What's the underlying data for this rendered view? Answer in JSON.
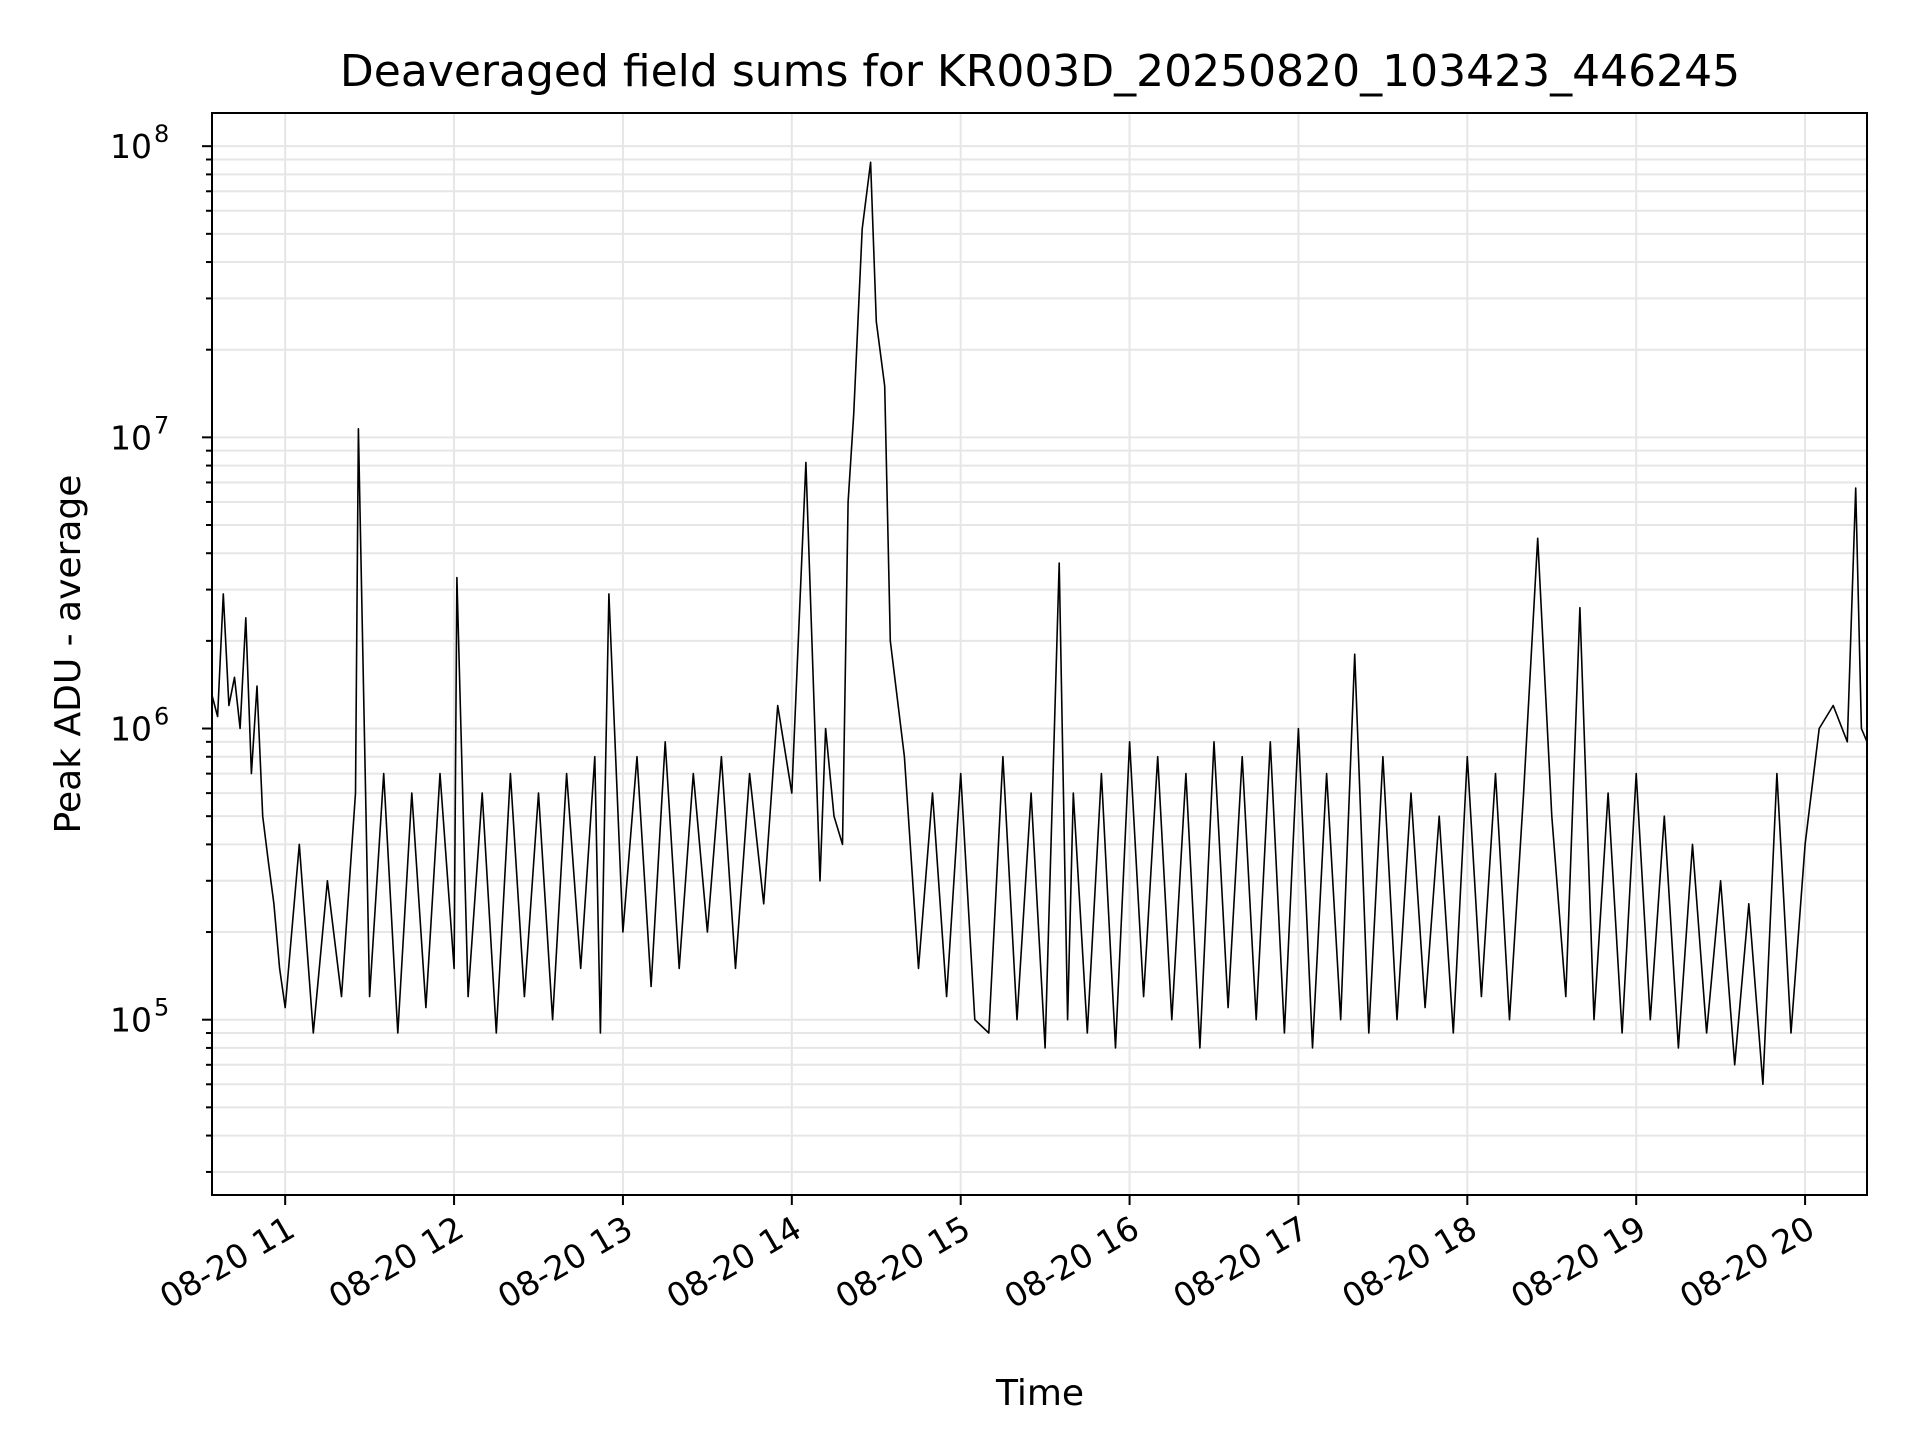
{
  "chart_data": {
    "type": "line",
    "title": "Deaveraged field sums for KR003D_20250820_103423_446245",
    "xlabel": "Time",
    "ylabel": "Peak ADU - average",
    "y_scale": "log",
    "xlim": [
      "08-20 10:34",
      "08-20 20:22"
    ],
    "ylim": [
      25000,
      130000000
    ],
    "grid": true,
    "x_tick_labels": [
      "08-20 11",
      "08-20 12",
      "08-20 13",
      "08-20 14",
      "08-20 15",
      "08-20 16",
      "08-20 17",
      "08-20 18",
      "08-20 19",
      "08-20 20"
    ],
    "y_tick_labels": [
      {
        "value": 100000,
        "base": "10",
        "exp": "5"
      },
      {
        "value": 1000000,
        "base": "10",
        "exp": "6"
      },
      {
        "value": 10000000,
        "base": "10",
        "exp": "7"
      },
      {
        "value": 100000000,
        "base": "10",
        "exp": "8"
      }
    ],
    "series": [
      {
        "color": "#000000",
        "x": [
          "10:34",
          "10:36",
          "10:38",
          "10:40",
          "10:42",
          "10:44",
          "10:46",
          "10:48",
          "10:50",
          "10:52",
          "10:54",
          "10:56",
          "10:58",
          "11:00",
          "11:05",
          "11:10",
          "11:15",
          "11:20",
          "11:25",
          "11:26",
          "11:30",
          "11:35",
          "11:40",
          "11:45",
          "11:50",
          "11:55",
          "12:00",
          "12:01",
          "12:05",
          "12:10",
          "12:15",
          "12:20",
          "12:25",
          "12:30",
          "12:35",
          "12:40",
          "12:45",
          "12:50",
          "12:52",
          "12:55",
          "13:00",
          "13:05",
          "13:10",
          "13:15",
          "13:20",
          "13:25",
          "13:30",
          "13:35",
          "13:40",
          "13:45",
          "13:50",
          "13:55",
          "14:00",
          "14:05",
          "14:10",
          "14:12",
          "14:15",
          "14:18",
          "14:20",
          "14:22",
          "14:25",
          "14:28",
          "14:30",
          "14:33",
          "14:35",
          "14:40",
          "14:45",
          "14:50",
          "14:55",
          "15:00",
          "15:05",
          "15:10",
          "15:15",
          "15:20",
          "15:25",
          "15:30",
          "15:35",
          "15:38",
          "15:40",
          "15:45",
          "15:50",
          "15:55",
          "16:00",
          "16:05",
          "16:10",
          "16:15",
          "16:20",
          "16:25",
          "16:30",
          "16:35",
          "16:40",
          "16:45",
          "16:50",
          "16:55",
          "17:00",
          "17:05",
          "17:10",
          "17:15",
          "17:20",
          "17:25",
          "17:30",
          "17:35",
          "17:40",
          "17:45",
          "17:50",
          "17:55",
          "18:00",
          "18:05",
          "18:10",
          "18:15",
          "18:20",
          "18:25",
          "18:30",
          "18:35",
          "18:40",
          "18:45",
          "18:50",
          "18:55",
          "19:00",
          "19:05",
          "19:10",
          "19:15",
          "19:20",
          "19:25",
          "19:30",
          "19:35",
          "19:40",
          "19:45",
          "19:50",
          "19:55",
          "20:00",
          "20:05",
          "20:10",
          "20:15",
          "20:18",
          "20:20",
          "20:22"
        ],
        "y": [
          1300000,
          1100000,
          2900000,
          1200000,
          1500000,
          1000000,
          2400000,
          700000,
          1400000,
          500000,
          350000,
          250000,
          150000,
          110000,
          400000,
          90000,
          300000,
          120000,
          600000,
          10700000,
          120000,
          700000,
          90000,
          600000,
          110000,
          700000,
          150000,
          3300000,
          120000,
          600000,
          90000,
          700000,
          120000,
          600000,
          100000,
          700000,
          150000,
          800000,
          90000,
          2900000,
          200000,
          800000,
          130000,
          900000,
          150000,
          700000,
          200000,
          800000,
          150000,
          700000,
          250000,
          1200000,
          600000,
          8200000,
          300000,
          1000000,
          500000,
          400000,
          6000000,
          12000000,
          52000000,
          88000000,
          25000000,
          15000000,
          2000000,
          800000,
          150000,
          600000,
          120000,
          700000,
          100000,
          90000,
          800000,
          100000,
          600000,
          80000,
          3700000,
          100000,
          600000,
          90000,
          700000,
          80000,
          900000,
          120000,
          800000,
          100000,
          700000,
          80000,
          900000,
          110000,
          800000,
          100000,
          900000,
          90000,
          1000000,
          80000,
          700000,
          100000,
          1800000,
          90000,
          800000,
          100000,
          600000,
          110000,
          500000,
          90000,
          800000,
          120000,
          700000,
          100000,
          600000,
          4500000,
          500000,
          120000,
          2600000,
          100000,
          600000,
          90000,
          700000,
          100000,
          500000,
          80000,
          400000,
          90000,
          300000,
          70000,
          250000,
          60000,
          700000,
          90000,
          400000,
          1000000,
          1200000,
          900000,
          6700000,
          1000000,
          900000
        ]
      }
    ]
  }
}
